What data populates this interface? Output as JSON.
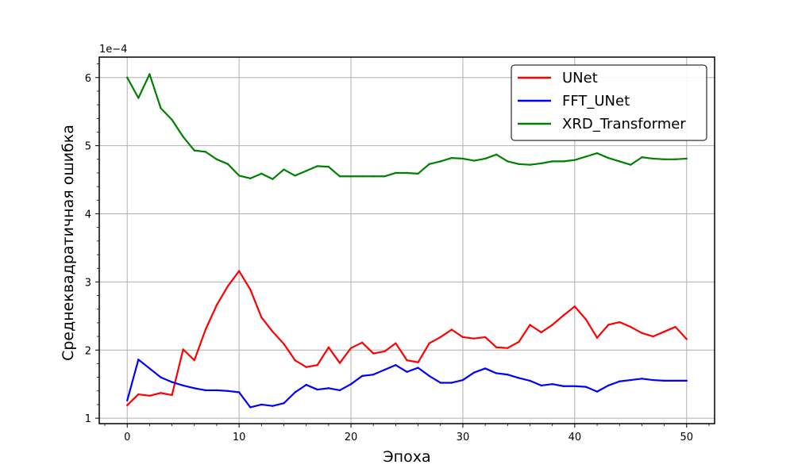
{
  "chart_data": {
    "type": "line",
    "xlabel": "Эпоха",
    "ylabel": "Среднеквадратичная ошибка",
    "y_offset_label": "1e−4",
    "xlim": [
      -2.5,
      52.5
    ],
    "ylim": [
      0.92,
      6.3
    ],
    "x_ticks": [
      0,
      10,
      20,
      30,
      40,
      50
    ],
    "y_ticks": [
      1,
      2,
      3,
      4,
      5,
      6
    ],
    "grid": true,
    "legend_position": "top-right",
    "x": [
      0,
      1,
      2,
      3,
      4,
      5,
      6,
      7,
      8,
      9,
      10,
      11,
      12,
      13,
      14,
      15,
      16,
      17,
      18,
      19,
      20,
      21,
      22,
      23,
      24,
      25,
      26,
      27,
      28,
      29,
      30,
      31,
      32,
      33,
      34,
      35,
      36,
      37,
      38,
      39,
      40,
      41,
      42,
      43,
      44,
      45,
      46,
      47,
      48,
      49,
      50
    ],
    "series": [
      {
        "name": "UNet",
        "color": "#ff0000",
        "values": [
          1.19,
          1.35,
          1.33,
          1.37,
          1.34,
          2.01,
          1.85,
          2.3,
          2.66,
          2.94,
          3.16,
          2.89,
          2.48,
          2.27,
          2.09,
          1.85,
          1.75,
          1.78,
          2.04,
          1.81,
          2.03,
          2.11,
          1.95,
          1.98,
          2.1,
          1.85,
          1.82,
          2.1,
          2.19,
          2.3,
          2.19,
          2.17,
          2.19,
          2.04,
          2.03,
          2.12,
          2.37,
          2.26,
          2.37,
          2.51,
          2.64,
          2.45,
          2.18,
          2.37,
          2.41,
          2.34,
          2.25,
          2.2,
          2.27,
          2.34,
          2.16
        ]
      },
      {
        "name": "FFT_UNet",
        "color": "#0000ff",
        "values": [
          1.26,
          1.86,
          1.73,
          1.6,
          1.53,
          1.48,
          1.44,
          1.41,
          1.41,
          1.4,
          1.38,
          1.16,
          1.2,
          1.18,
          1.22,
          1.38,
          1.49,
          1.42,
          1.44,
          1.41,
          1.5,
          1.62,
          1.64,
          1.71,
          1.78,
          1.68,
          1.74,
          1.62,
          1.52,
          1.52,
          1.56,
          1.67,
          1.73,
          1.66,
          1.64,
          1.59,
          1.55,
          1.48,
          1.5,
          1.47,
          1.47,
          1.46,
          1.39,
          1.48,
          1.54,
          1.56,
          1.58,
          1.56,
          1.55,
          1.55,
          1.55
        ]
      },
      {
        "name": "XRD_Transformer",
        "color": "#008000",
        "values": [
          6.0,
          5.7,
          6.05,
          5.55,
          5.38,
          5.13,
          4.93,
          4.91,
          4.8,
          4.73,
          4.56,
          4.52,
          4.59,
          4.51,
          4.65,
          4.56,
          4.63,
          4.7,
          4.69,
          4.55,
          4.55,
          4.55,
          4.55,
          4.55,
          4.6,
          4.6,
          4.59,
          4.73,
          4.77,
          4.82,
          4.81,
          4.78,
          4.81,
          4.87,
          4.77,
          4.73,
          4.72,
          4.74,
          4.77,
          4.77,
          4.79,
          4.84,
          4.89,
          4.82,
          4.77,
          4.72,
          4.83,
          4.81,
          4.8,
          4.8,
          4.81
        ]
      }
    ]
  }
}
